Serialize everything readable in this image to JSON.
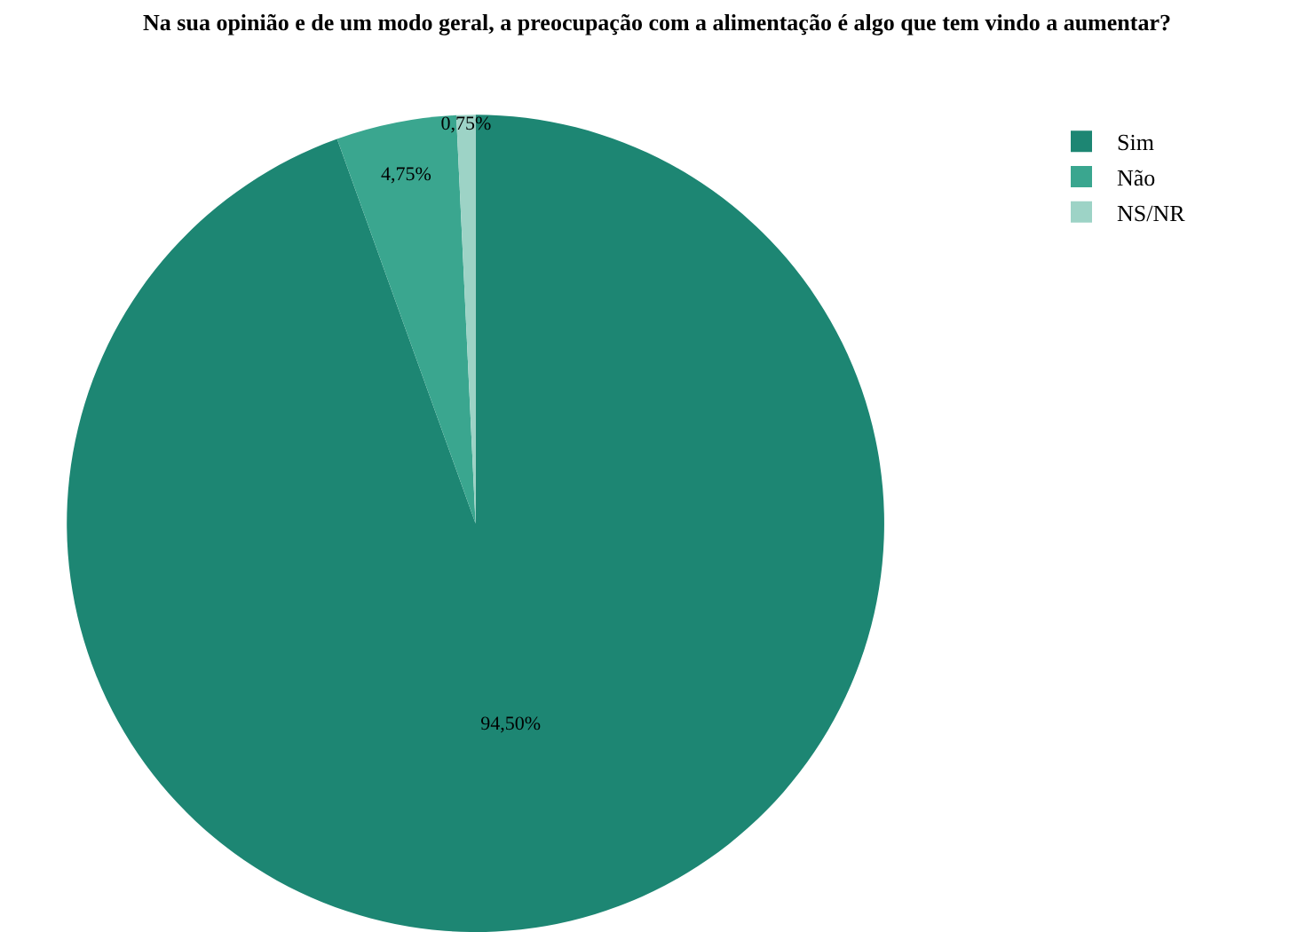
{
  "chart_data": {
    "type": "pie",
    "title": "Na sua opinião e de um modo geral, a preocupação com a alimentação é algo que tem vindo a aumentar?",
    "categories": [
      "Sim",
      "Não",
      "NS/NR"
    ],
    "values": [
      94.5,
      4.75,
      0.75
    ],
    "colors": [
      "#1d8673",
      "#3aa68f",
      "#9dd3c6"
    ],
    "value_labels": [
      "94,50%",
      "4,75%",
      "0,75%"
    ],
    "legend": "top right"
  }
}
